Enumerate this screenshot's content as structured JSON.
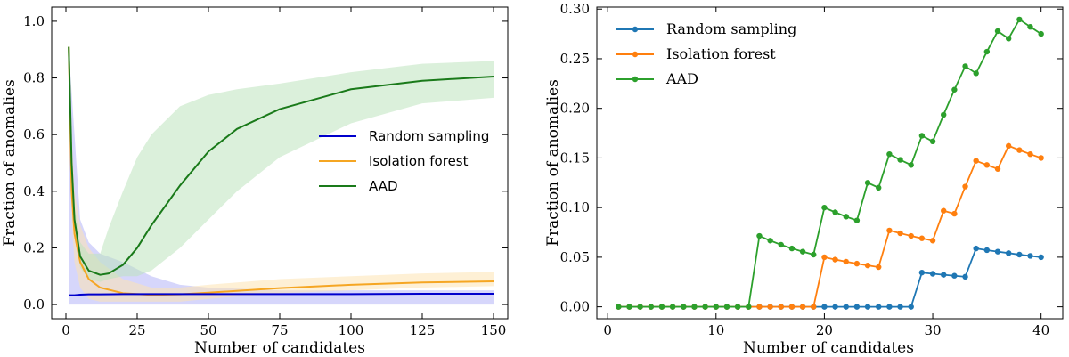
{
  "chart_data": [
    {
      "type": "line",
      "xlabel": "Number of candidates",
      "ylabel": "Fraction of anomalies",
      "xlim": [
        -5,
        155
      ],
      "ylim": [
        -0.05,
        1.05
      ],
      "xticks": [
        0,
        25,
        50,
        75,
        100,
        125,
        150
      ],
      "xtick_labels": [
        "0",
        "25",
        "50",
        "75",
        "100",
        "125",
        "150"
      ],
      "yticks": [
        0.0,
        0.2,
        0.4,
        0.6,
        0.8,
        1.0
      ],
      "ytick_labels": [
        "0.0",
        "0.2",
        "0.4",
        "0.6",
        "0.8",
        "1.0"
      ],
      "legend_position": "center-right",
      "series": [
        {
          "name": "Random sampling",
          "color": "#0000cc",
          "band_color": "#b4b4f8",
          "x": [
            1,
            3,
            5,
            8,
            12,
            20,
            30,
            40,
            50,
            75,
            100,
            125,
            150
          ],
          "values": [
            0.033,
            0.033,
            0.035,
            0.036,
            0.036,
            0.037,
            0.037,
            0.037,
            0.037,
            0.037,
            0.037,
            0.038,
            0.038
          ],
          "lower": [
            0,
            0,
            0,
            0,
            0,
            0,
            0,
            0,
            0,
            0,
            0,
            0,
            0
          ],
          "upper": [
            0.9,
            0.6,
            0.3,
            0.22,
            0.18,
            0.15,
            0.1,
            0.07,
            0.06,
            0.05,
            0.05,
            0.05,
            0.05
          ]
        },
        {
          "name": "Isolation forest",
          "color": "#f5a623",
          "band_color": "#fde4b2",
          "x": [
            1,
            2,
            3,
            5,
            8,
            12,
            20,
            30,
            40,
            50,
            75,
            100,
            125,
            150
          ],
          "values": [
            0.91,
            0.4,
            0.25,
            0.15,
            0.09,
            0.06,
            0.04,
            0.034,
            0.036,
            0.042,
            0.058,
            0.07,
            0.078,
            0.082
          ],
          "lower": [
            0.85,
            0.3,
            0.15,
            0.06,
            0.02,
            0.01,
            0.01,
            0.01,
            0.01,
            0.02,
            0.04,
            0.05,
            0.06,
            0.065
          ],
          "upper": [
            1.0,
            0.6,
            0.4,
            0.28,
            0.2,
            0.15,
            0.09,
            0.06,
            0.06,
            0.07,
            0.09,
            0.1,
            0.11,
            0.115
          ]
        },
        {
          "name": "AAD",
          "color": "#1a7a1a",
          "band_color": "#bde3bd",
          "x": [
            1,
            2,
            3,
            5,
            8,
            12,
            15,
            20,
            25,
            30,
            40,
            50,
            60,
            75,
            100,
            125,
            150
          ],
          "values": [
            0.91,
            0.5,
            0.3,
            0.17,
            0.12,
            0.105,
            0.11,
            0.14,
            0.2,
            0.28,
            0.42,
            0.54,
            0.62,
            0.69,
            0.76,
            0.79,
            0.805
          ],
          "lower": [
            0.88,
            0.45,
            0.25,
            0.13,
            0.09,
            0.08,
            0.09,
            0.1,
            0.1,
            0.12,
            0.2,
            0.3,
            0.4,
            0.52,
            0.64,
            0.71,
            0.73
          ],
          "upper": [
            0.93,
            0.55,
            0.35,
            0.22,
            0.18,
            0.18,
            0.27,
            0.4,
            0.52,
            0.6,
            0.7,
            0.74,
            0.76,
            0.78,
            0.82,
            0.85,
            0.86
          ]
        }
      ]
    },
    {
      "type": "line",
      "xlabel": "Number of candidates",
      "ylabel": "Fraction of anomalies",
      "xlim": [
        -1,
        42
      ],
      "ylim": [
        -0.012,
        0.302
      ],
      "xticks": [
        0,
        10,
        20,
        30,
        40
      ],
      "xtick_labels": [
        "0",
        "10",
        "20",
        "30",
        "40"
      ],
      "yticks": [
        0.0,
        0.05,
        0.1,
        0.15,
        0.2,
        0.25,
        0.3
      ],
      "ytick_labels": [
        "0.00",
        "0.05",
        "0.10",
        "0.15",
        "0.20",
        "0.25",
        "0.30"
      ],
      "legend_position": "top-left",
      "series": [
        {
          "name": "Random sampling",
          "color": "#1f77b4",
          "x": [
            1,
            2,
            3,
            4,
            5,
            6,
            7,
            8,
            9,
            10,
            11,
            12,
            13,
            14,
            15,
            16,
            17,
            18,
            19,
            20,
            21,
            22,
            23,
            24,
            25,
            26,
            27,
            28,
            29,
            30,
            31,
            32,
            33,
            34,
            35,
            36,
            37,
            38,
            39,
            40
          ],
          "values": [
            0,
            0,
            0,
            0,
            0,
            0,
            0,
            0,
            0,
            0,
            0,
            0,
            0,
            0,
            0,
            0,
            0,
            0,
            0,
            0,
            0,
            0,
            0,
            0,
            0,
            0,
            0,
            0,
            0.0345,
            0.0333,
            0.0323,
            0.0313,
            0.0303,
            0.0588,
            0.0571,
            0.0556,
            0.0541,
            0.0526,
            0.0513,
            0.05
          ]
        },
        {
          "name": "Isolation forest",
          "color": "#ff7f0e",
          "x": [
            1,
            2,
            3,
            4,
            5,
            6,
            7,
            8,
            9,
            10,
            11,
            12,
            13,
            14,
            15,
            16,
            17,
            18,
            19,
            20,
            21,
            22,
            23,
            24,
            25,
            26,
            27,
            28,
            29,
            30,
            31,
            32,
            33,
            34,
            35,
            36,
            37,
            38,
            39,
            40
          ],
          "values": [
            0,
            0,
            0,
            0,
            0,
            0,
            0,
            0,
            0,
            0,
            0,
            0,
            0,
            0,
            0,
            0,
            0,
            0,
            0,
            0.05,
            0.0476,
            0.0455,
            0.0435,
            0.0417,
            0.04,
            0.0769,
            0.0741,
            0.0714,
            0.069,
            0.0667,
            0.0968,
            0.0938,
            0.1212,
            0.1471,
            0.1429,
            0.1389,
            0.1622,
            0.1579,
            0.1538,
            0.15
          ]
        },
        {
          "name": "AAD",
          "color": "#2ca02c",
          "x": [
            1,
            2,
            3,
            4,
            5,
            6,
            7,
            8,
            9,
            10,
            11,
            12,
            13,
            14,
            15,
            16,
            17,
            18,
            19,
            20,
            21,
            22,
            23,
            24,
            25,
            26,
            27,
            28,
            29,
            30,
            31,
            32,
            33,
            34,
            35,
            36,
            37,
            38,
            39,
            40
          ],
          "values": [
            0,
            0,
            0,
            0,
            0,
            0,
            0,
            0,
            0,
            0,
            0,
            0,
            0,
            0.0714,
            0.0667,
            0.0625,
            0.0588,
            0.0556,
            0.0526,
            0.1,
            0.0952,
            0.0909,
            0.087,
            0.125,
            0.12,
            0.1538,
            0.1481,
            0.1429,
            0.1724,
            0.1667,
            0.1935,
            0.2188,
            0.2424,
            0.2353,
            0.2571,
            0.2778,
            0.2703,
            0.2895,
            0.2821,
            0.275
          ]
        }
      ]
    }
  ]
}
